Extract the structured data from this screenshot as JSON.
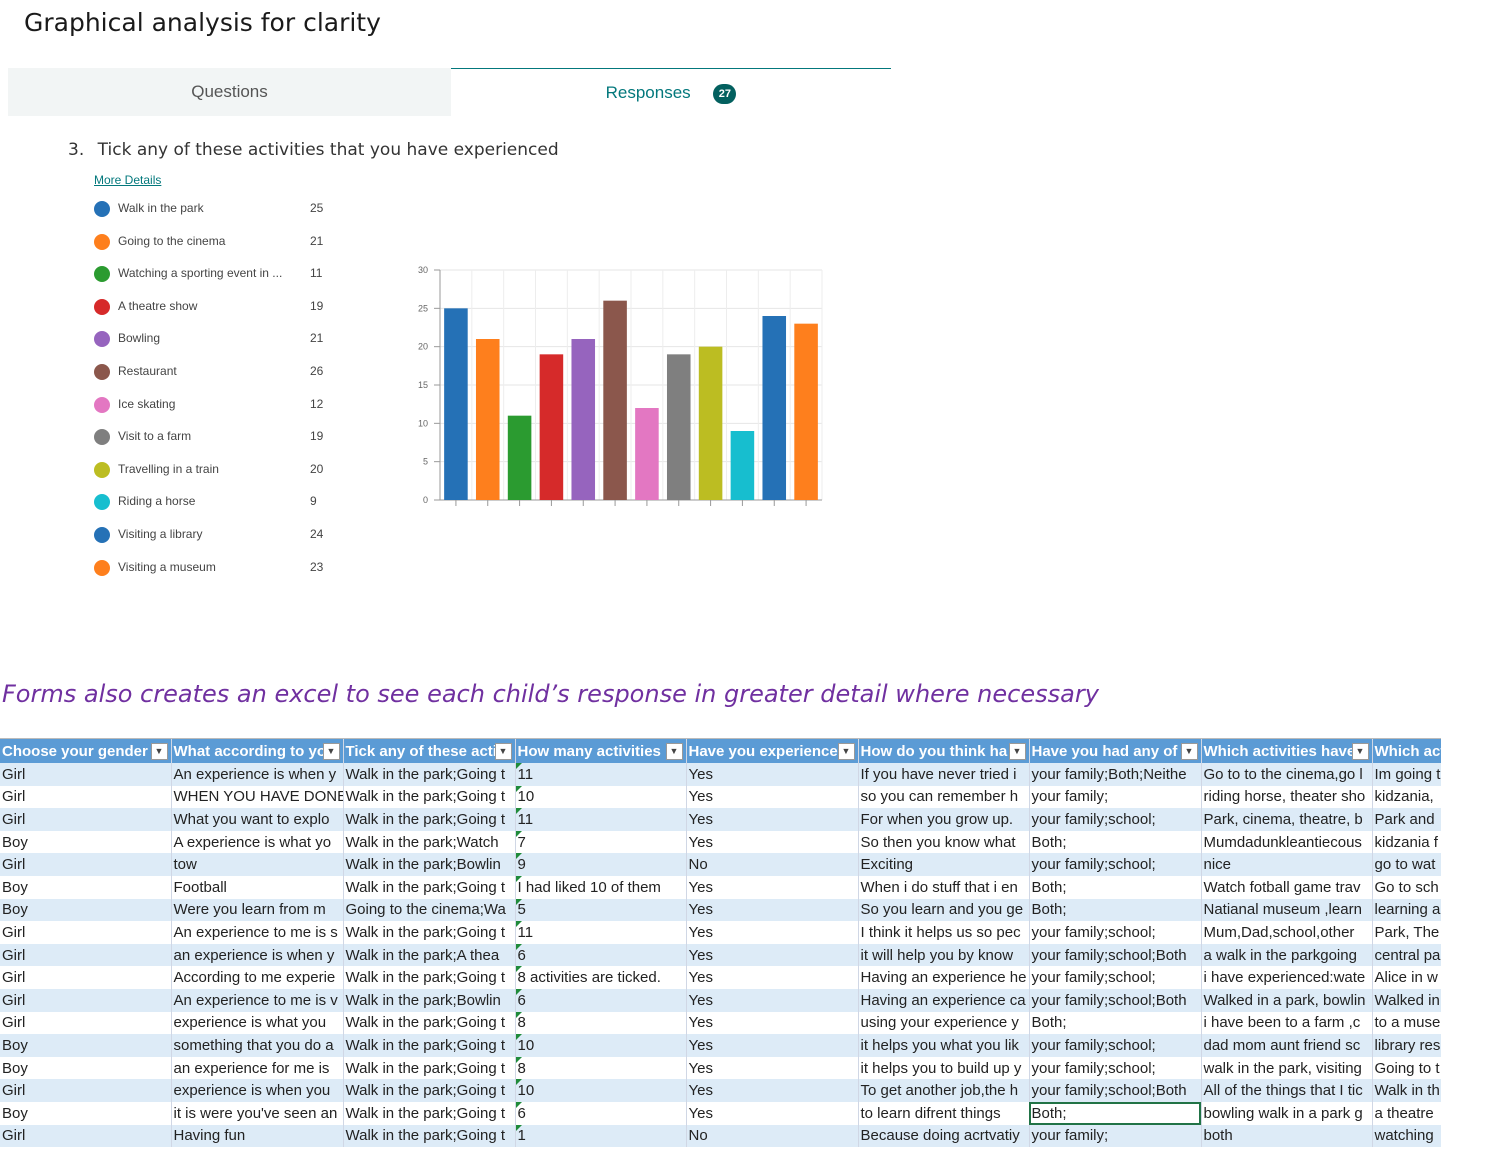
{
  "page_title": "Graphical analysis for clarity",
  "tabs": {
    "questions": "Questions",
    "responses": "Responses",
    "response_count": "27"
  },
  "question": {
    "number": "3.",
    "text": "Tick any of these activities that you have experienced",
    "more_details": "More Details"
  },
  "colors": {
    "teal_accent": "#03787c",
    "note_purple": "#7030a0",
    "excel_header": "#5b9bd5",
    "excel_band": "#ddebf7"
  },
  "legend": [
    {
      "label": "Walk in the park",
      "count": "25",
      "color": "#2571b6"
    },
    {
      "label": "Going to the cinema",
      "count": "21",
      "color": "#fe7f1d"
    },
    {
      "label": "Watching a sporting event in ...",
      "count": "11",
      "color": "#2b9b30"
    },
    {
      "label": "A theatre show",
      "count": "19",
      "color": "#d62a2a"
    },
    {
      "label": "Bowling",
      "count": "21",
      "color": "#9664be"
    },
    {
      "label": "Restaurant",
      "count": "26",
      "color": "#8b574c"
    },
    {
      "label": "Ice skating",
      "count": "12",
      "color": "#e377c2"
    },
    {
      "label": "Visit to a farm",
      "count": "19",
      "color": "#7f7f7f"
    },
    {
      "label": "Travelling in a train",
      "count": "20",
      "color": "#bcbd22"
    },
    {
      "label": "Riding a horse",
      "count": "9",
      "color": "#17becf"
    },
    {
      "label": "Visiting a library",
      "count": "24",
      "color": "#2571b6"
    },
    {
      "label": "Visiting a museum",
      "count": "23",
      "color": "#fe7f1d"
    }
  ],
  "chart_data": {
    "type": "bar",
    "categories": [
      "Walk in the park",
      "Going to the cinema",
      "Watching a sporting event in ...",
      "A theatre show",
      "Bowling",
      "Restaurant",
      "Ice skating",
      "Visit to a farm",
      "Travelling in a train",
      "Riding a horse",
      "Visiting a library",
      "Visiting a museum"
    ],
    "values": [
      25,
      21,
      11,
      19,
      21,
      26,
      12,
      19,
      20,
      9,
      24,
      23
    ],
    "colors": [
      "#2571b6",
      "#fe7f1d",
      "#2b9b30",
      "#d62a2a",
      "#9664be",
      "#8b574c",
      "#e377c2",
      "#7f7f7f",
      "#bcbd22",
      "#17becf",
      "#2571b6",
      "#fe7f1d"
    ],
    "yticks": [
      "0",
      "5",
      "10",
      "15",
      "20",
      "25",
      "30"
    ],
    "ylim": [
      0,
      30
    ],
    "grid": true,
    "title": "",
    "xlabel": "",
    "ylabel": ""
  },
  "note": "Forms also creates an excel to see each child’s response in greater detail where necessary",
  "sheet": {
    "headers": [
      "Choose your gender",
      "What according to yo",
      "Tick any of these acti",
      "How many activities",
      "Have you experience",
      "How do you think ha",
      "Have you had any of",
      "Which activities have",
      "Which act"
    ],
    "rows": [
      [
        "Girl",
        "An experience is when y",
        "Walk in the park;Going t",
        "11",
        "Yes",
        "If you have never tried i",
        "your family;Both;Neithe",
        "Go to to the cinema,go l",
        "Im going t"
      ],
      [
        "Girl",
        "WHEN YOU HAVE DONE",
        "Walk in the park;Going t",
        "10",
        "Yes",
        "so you can remember h",
        "your family;",
        "riding horse, theater sho",
        "kidzania,"
      ],
      [
        "Girl",
        "What you want to explo",
        "Walk in the park;Going t",
        "11",
        "Yes",
        "For when you grow up.",
        "your family;school;",
        "Park, cinema, theatre, b",
        "Park and"
      ],
      [
        "Boy",
        "A experience is what yo",
        "Walk in the park;Watch",
        "7",
        "Yes",
        "So then you know what",
        "Both;",
        "Mumdadunkleantiecous",
        "kidzania f"
      ],
      [
        "Girl",
        "tow",
        "Walk in the park;Bowlin",
        "9",
        "No",
        "Exciting",
        "your family;school;",
        "nice",
        "go to wat"
      ],
      [
        "Boy",
        "Football",
        "Walk in the park;Going t",
        "I had liked 10 of them",
        "Yes",
        "When i do stuff that i en",
        "Both;",
        "Watch fotball game trav",
        "Go to sch"
      ],
      [
        "Boy",
        "Were you learn from m",
        "Going to the cinema;Wa",
        "5",
        "Yes",
        "So you learn and you ge",
        "Both;",
        "Natianal museum ,learn",
        "learning a"
      ],
      [
        "Girl",
        "An experience to me is s",
        "Walk in the park;Going t",
        "11",
        "Yes",
        "I think it helps us so pec",
        "your family;school;",
        "Mum,Dad,school,other",
        "Park, The"
      ],
      [
        "Girl",
        "an experience is when y",
        "Walk in the park;A thea",
        "6",
        "Yes",
        "it will help you by know",
        "your family;school;Both",
        "a walk in the parkgoing",
        "central pa"
      ],
      [
        "Girl",
        "According to me experie",
        "Walk in the park;Going t",
        "8 activities are ticked.",
        "Yes",
        "Having an experience he",
        "your family;school;",
        "i have experienced:wate",
        "Alice in w"
      ],
      [
        "Girl",
        "An experience to me is v",
        "Walk in the park;Bowlin",
        "6",
        "Yes",
        "Having an experience ca",
        "your family;school;Both",
        "Walked in a park, bowlin",
        "Walked in"
      ],
      [
        "Girl",
        "experience is what  you",
        "Walk in the park;Going t",
        "8",
        "Yes",
        "using your experience y",
        "Both;",
        "i have been to  a farm ,c",
        "to a muse"
      ],
      [
        "Boy",
        "something that you do a",
        "Walk in the park;Going t",
        "10",
        "Yes",
        "it helps you what you lik",
        "your family;school;",
        "dad mom aunt friend sc",
        "library res"
      ],
      [
        "Boy",
        "an experience for me is",
        "Walk in the park;Going t",
        "8",
        "Yes",
        "it helps you to build up y",
        "your family;school;",
        "walk in the park, visiting",
        "Going to t"
      ],
      [
        "Girl",
        "experience is when you",
        "Walk in the park;Going t",
        "10",
        "Yes",
        "To get another job,the h",
        "your family;school;Both",
        "All of the things that I tic",
        "Walk in th"
      ],
      [
        "Boy",
        "it is were you've seen an",
        "Walk in the park;Going t",
        "6",
        "Yes",
        "to learn difrent things",
        "Both;",
        "bowling walk in a park g",
        "a theatre"
      ],
      [
        "Girl",
        "Having  fun",
        "Walk in the park;Going t",
        "1",
        "No",
        "Because doing acrtvatiy",
        "your family;",
        "both",
        "watching"
      ]
    ]
  }
}
